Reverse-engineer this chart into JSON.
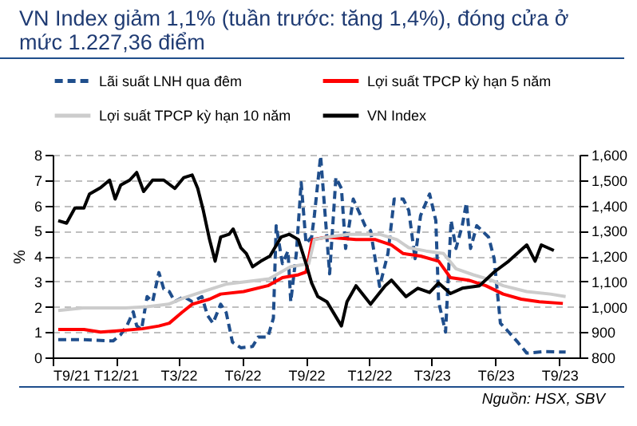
{
  "chart_data": {
    "type": "line",
    "title": "VN Index giảm 1,1% (tuần trước: tăng 1,4%), đóng cửa ở mức 1.227,36 điểm",
    "ylabel": "%",
    "annotations": [
      "Nguồn: HSX, SBV"
    ],
    "xlim": [
      "2021-09-01",
      "2023-09-30"
    ],
    "xticks": [
      {
        "value": "2021-09-01",
        "label": "T9/21"
      },
      {
        "value": "2021-12-01",
        "label": "T12/21"
      },
      {
        "value": "2022-03-01",
        "label": "T3/22"
      },
      {
        "value": "2022-06-01",
        "label": "T6/22"
      },
      {
        "value": "2022-09-01",
        "label": "T9/22"
      },
      {
        "value": "2022-12-01",
        "label": "T12/22"
      },
      {
        "value": "2023-03-01",
        "label": "T3/23"
      },
      {
        "value": "2023-06-01",
        "label": "T6/23"
      },
      {
        "value": "2023-09-01",
        "label": "T9/23"
      }
    ],
    "ylim": [
      0,
      8
    ],
    "yticks": [
      0,
      1,
      2,
      3,
      4,
      5,
      6,
      7,
      8
    ],
    "y2lim": [
      800,
      1600
    ],
    "y2ticks": [
      800,
      900,
      {
        "value": 1000,
        "label": "1,000"
      },
      {
        "value": 1100,
        "label": "1,100"
      },
      {
        "value": 1200,
        "label": "1,200"
      },
      {
        "value": 1300,
        "label": "1,300"
      },
      {
        "value": 1400,
        "label": "1,400"
      },
      {
        "value": 1500,
        "label": "1,500"
      },
      {
        "value": 1600,
        "label": "1,600"
      }
    ],
    "grid": "y",
    "legend": "top",
    "series": [
      {
        "name": "Lãi suất LNH qua đêm",
        "color": "#1f4e8c",
        "line_style": "dashed",
        "x": [
          "2021-09-09",
          "2021-10-15",
          "2021-11-27",
          "2021-12-08",
          "2021-12-17",
          "2021-12-26",
          "2021-12-31",
          "2022-01-07",
          "2022-01-15",
          "2022-01-23",
          "2022-02-01",
          "2022-02-08",
          "2022-02-16",
          "2022-02-24",
          "2022-03-09",
          "2022-03-21",
          "2022-04-04",
          "2022-04-12",
          "2022-04-20",
          "2022-05-01",
          "2022-05-09",
          "2022-05-18",
          "2022-05-30",
          "2022-06-16",
          "2022-06-24",
          "2022-07-08",
          "2022-07-16",
          "2022-07-20",
          "2022-07-29",
          "2022-08-06",
          "2022-08-10",
          "2022-08-18",
          "2022-08-25",
          "2022-09-01",
          "2022-09-09",
          "2022-09-13",
          "2022-09-22",
          "2022-10-01",
          "2022-10-05",
          "2022-10-14",
          "2022-10-22",
          "2022-10-28",
          "2022-11-08",
          "2022-11-17",
          "2022-11-25",
          "2022-12-03",
          "2022-12-16",
          "2022-12-28",
          "2023-01-06",
          "2023-01-19",
          "2023-01-27",
          "2023-02-05",
          "2023-02-13",
          "2023-02-26",
          "2023-03-07",
          "2023-03-11",
          "2023-03-21",
          "2023-03-29",
          "2023-04-05",
          "2023-04-14",
          "2023-04-20",
          "2023-04-26",
          "2023-05-05",
          "2023-05-22",
          "2023-05-30",
          "2023-06-08",
          "2023-06-20",
          "2023-07-03",
          "2023-07-16",
          "2023-08-11",
          "2023-09-10"
        ],
        "values": [
          0.7,
          0.7,
          0.65,
          0.9,
          1.25,
          1.8,
          1.25,
          1.1,
          2.4,
          2.2,
          3.35,
          2.7,
          2.6,
          2.2,
          2.4,
          2.2,
          2.4,
          1.66,
          1.35,
          2.1,
          1.77,
          0.6,
          0.38,
          0.43,
          0.8,
          0.8,
          1.55,
          5.2,
          3.7,
          4.2,
          2.2,
          4.1,
          6.9,
          4.5,
          4.75,
          5.6,
          7.95,
          4.75,
          3.3,
          7.1,
          6.67,
          4.3,
          6.25,
          5.7,
          5.2,
          5.0,
          2.8,
          4.1,
          6.25,
          6.25,
          5.8,
          3.9,
          5.6,
          6.45,
          5.4,
          2.2,
          1.0,
          5.4,
          4.3,
          5.2,
          6.1,
          4.3,
          5.2,
          4.75,
          3.9,
          1.35,
          1.0,
          0.6,
          0.17,
          0.23,
          0.21
        ]
      },
      {
        "name": "Lợi suất TPCP kỳ hạn 5 năm",
        "color": "#ff0000",
        "line_style": "solid",
        "x": [
          "2021-09-09",
          "2021-10-16",
          "2021-11-09",
          "2021-12-03",
          "2022-01-08",
          "2022-02-01",
          "2022-02-16",
          "2022-03-06",
          "2022-03-21",
          "2022-04-15",
          "2022-05-01",
          "2022-06-03",
          "2022-07-08",
          "2022-07-29",
          "2022-08-21",
          "2022-09-01",
          "2022-09-10",
          "2022-10-01",
          "2022-11-12",
          "2022-12-10",
          "2023-01-02",
          "2023-01-19",
          "2023-02-13",
          "2023-03-11",
          "2023-03-28",
          "2023-04-23",
          "2023-05-18",
          "2023-06-12",
          "2023-07-08",
          "2023-08-03",
          "2023-09-06"
        ],
        "values": [
          1.1,
          1.1,
          1.0,
          1.05,
          1.13,
          1.24,
          1.35,
          1.77,
          2.1,
          2.3,
          2.5,
          2.6,
          2.83,
          3.15,
          3.26,
          3.37,
          4.65,
          4.75,
          4.65,
          4.65,
          4.44,
          4.1,
          4.0,
          3.8,
          3.15,
          3.05,
          2.83,
          2.5,
          2.3,
          2.2,
          2.13
        ]
      },
      {
        "name": "Lợi suất TPCP kỳ hạn 10 năm",
        "color": "#cccccc",
        "line_style": "solid",
        "x": [
          "2021-09-09",
          "2021-10-15",
          "2021-11-15",
          "2021-12-15",
          "2022-01-15",
          "2022-02-15",
          "2022-03-09",
          "2022-04-06",
          "2022-05-10",
          "2022-06-10",
          "2022-07-10",
          "2022-07-27",
          "2022-08-10",
          "2022-09-05",
          "2022-09-13",
          "2022-10-01",
          "2022-11-01",
          "2022-12-16",
          "2023-01-10",
          "2023-01-27",
          "2023-02-21",
          "2023-03-18",
          "2023-04-05",
          "2023-04-30",
          "2023-05-26",
          "2023-06-12",
          "2023-07-16",
          "2023-08-19",
          "2023-09-10"
        ],
        "values": [
          1.85,
          1.95,
          1.95,
          1.95,
          2.0,
          2.1,
          2.35,
          2.6,
          2.9,
          3.0,
          3.1,
          3.37,
          3.58,
          3.7,
          4.65,
          4.75,
          4.86,
          4.86,
          4.65,
          4.33,
          4.2,
          4.1,
          3.5,
          3.26,
          3.05,
          2.83,
          2.6,
          2.5,
          2.4
        ]
      },
      {
        "name": "VN Index",
        "color": "#000000",
        "line_style": "solid",
        "axis": "y2",
        "x": [
          "2021-09-09",
          "2021-09-21",
          "2021-10-03",
          "2021-10-16",
          "2021-10-24",
          "2021-11-09",
          "2021-11-22",
          "2021-11-30",
          "2021-12-08",
          "2021-12-21",
          "2021-12-31",
          "2022-01-10",
          "2022-01-23",
          "2022-02-08",
          "2022-02-24",
          "2022-03-09",
          "2022-03-21",
          "2022-03-29",
          "2022-04-06",
          "2022-04-15",
          "2022-04-23",
          "2022-05-01",
          "2022-05-13",
          "2022-05-19",
          "2022-05-30",
          "2022-06-07",
          "2022-06-16",
          "2022-06-28",
          "2022-07-11",
          "2022-07-27",
          "2022-08-08",
          "2022-08-21",
          "2022-09-01",
          "2022-09-09",
          "2022-09-18",
          "2022-10-01",
          "2022-10-22",
          "2022-10-30",
          "2022-11-12",
          "2022-12-03",
          "2022-12-24",
          "2023-01-02",
          "2023-01-23",
          "2023-02-09",
          "2023-02-26",
          "2023-03-11",
          "2023-03-28",
          "2023-04-14",
          "2023-05-09",
          "2023-05-30",
          "2023-06-20",
          "2023-07-16",
          "2023-07-28",
          "2023-08-06",
          "2023-08-15",
          "2023-08-24"
        ],
        "values": [
          1340,
          1330,
          1390,
          1390,
          1445,
          1470,
          1500,
          1425,
          1480,
          1500,
          1530,
          1455,
          1500,
          1500,
          1467,
          1510,
          1520,
          1467,
          1380,
          1265,
          1180,
          1275,
          1286,
          1307,
          1233,
          1210,
          1158,
          1180,
          1200,
          1275,
          1286,
          1265,
          1170,
          1094,
          1040,
          1020,
          924,
          1020,
          1083,
          1010,
          1083,
          1105,
          1040,
          1073,
          1056,
          1094,
          1052,
          1073,
          1083,
          1137,
          1180,
          1244,
          1180,
          1244,
          1233,
          1222
        ]
      }
    ]
  }
}
